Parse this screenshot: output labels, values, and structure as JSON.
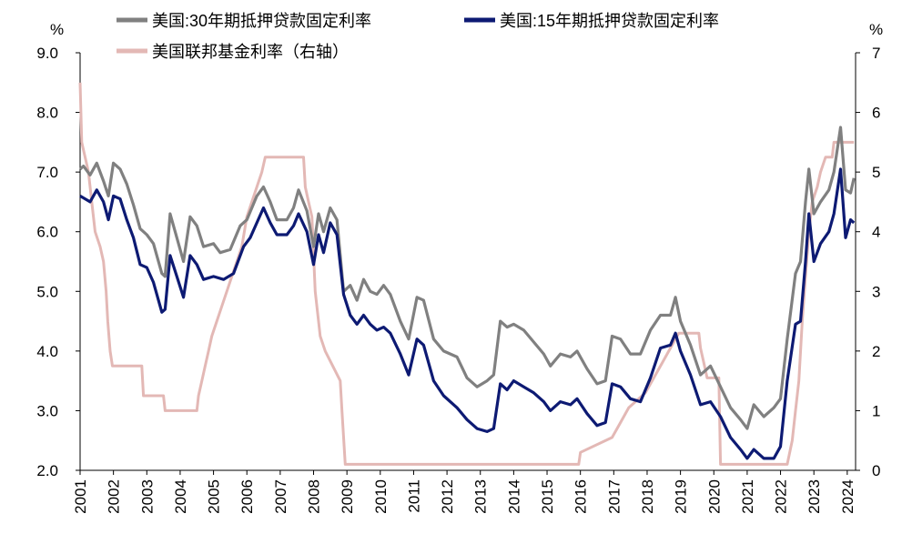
{
  "chart_data": {
    "type": "line",
    "title": "",
    "left_axis_unit": "%",
    "right_axis_unit": "%",
    "ylim_left": [
      2.0,
      9.0
    ],
    "ylim_right": [
      0,
      7
    ],
    "yticks_left": [
      "9.0",
      "8.0",
      "7.0",
      "6.0",
      "5.0",
      "4.0",
      "3.0",
      "2.0"
    ],
    "yticks_right": [
      "7",
      "6",
      "5",
      "4",
      "3",
      "2",
      "1",
      "0"
    ],
    "xlim": [
      2001,
      2024.25
    ],
    "xticks": [
      "2001",
      "2002",
      "2003",
      "2004",
      "2005",
      "2006",
      "2007",
      "2008",
      "2009",
      "2010",
      "2011",
      "2012",
      "2013",
      "2014",
      "2015",
      "2016",
      "2017",
      "2018",
      "2019",
      "2020",
      "2021",
      "2022",
      "2023",
      "2024"
    ],
    "series": [
      {
        "name": "美国:30年期抵押贷款固定利率",
        "color": "#808080",
        "axis": "left",
        "points": [
          [
            2001.0,
            7.05
          ],
          [
            2001.1,
            7.1
          ],
          [
            2001.3,
            6.95
          ],
          [
            2001.5,
            7.15
          ],
          [
            2001.7,
            6.85
          ],
          [
            2001.85,
            6.6
          ],
          [
            2002.0,
            7.15
          ],
          [
            2002.2,
            7.05
          ],
          [
            2002.4,
            6.8
          ],
          [
            2002.6,
            6.45
          ],
          [
            2002.8,
            6.05
          ],
          [
            2003.0,
            5.95
          ],
          [
            2003.2,
            5.8
          ],
          [
            2003.45,
            5.3
          ],
          [
            2003.55,
            5.25
          ],
          [
            2003.7,
            6.3
          ],
          [
            2003.9,
            5.9
          ],
          [
            2004.1,
            5.5
          ],
          [
            2004.3,
            6.25
          ],
          [
            2004.5,
            6.1
          ],
          [
            2004.7,
            5.75
          ],
          [
            2005.0,
            5.8
          ],
          [
            2005.2,
            5.65
          ],
          [
            2005.5,
            5.7
          ],
          [
            2005.8,
            6.1
          ],
          [
            2006.0,
            6.2
          ],
          [
            2006.3,
            6.6
          ],
          [
            2006.5,
            6.75
          ],
          [
            2006.7,
            6.5
          ],
          [
            2006.9,
            6.2
          ],
          [
            2007.2,
            6.2
          ],
          [
            2007.4,
            6.4
          ],
          [
            2007.55,
            6.7
          ],
          [
            2007.8,
            6.35
          ],
          [
            2008.0,
            5.75
          ],
          [
            2008.15,
            6.3
          ],
          [
            2008.3,
            6.0
          ],
          [
            2008.5,
            6.4
          ],
          [
            2008.7,
            6.2
          ],
          [
            2008.9,
            5.0
          ],
          [
            2009.1,
            5.1
          ],
          [
            2009.3,
            4.85
          ],
          [
            2009.5,
            5.2
          ],
          [
            2009.7,
            5.0
          ],
          [
            2009.9,
            4.95
          ],
          [
            2010.1,
            5.1
          ],
          [
            2010.3,
            4.95
          ],
          [
            2010.6,
            4.5
          ],
          [
            2010.85,
            4.2
          ],
          [
            2011.1,
            4.9
          ],
          [
            2011.3,
            4.85
          ],
          [
            2011.6,
            4.2
          ],
          [
            2011.9,
            4.0
          ],
          [
            2012.3,
            3.9
          ],
          [
            2012.6,
            3.55
          ],
          [
            2012.9,
            3.4
          ],
          [
            2013.2,
            3.5
          ],
          [
            2013.4,
            3.6
          ],
          [
            2013.6,
            4.5
          ],
          [
            2013.8,
            4.4
          ],
          [
            2014.0,
            4.45
          ],
          [
            2014.3,
            4.35
          ],
          [
            2014.6,
            4.15
          ],
          [
            2014.9,
            3.95
          ],
          [
            2015.1,
            3.75
          ],
          [
            2015.4,
            3.95
          ],
          [
            2015.7,
            3.9
          ],
          [
            2015.9,
            4.0
          ],
          [
            2016.2,
            3.7
          ],
          [
            2016.5,
            3.45
          ],
          [
            2016.75,
            3.5
          ],
          [
            2016.95,
            4.25
          ],
          [
            2017.2,
            4.2
          ],
          [
            2017.5,
            3.95
          ],
          [
            2017.8,
            3.95
          ],
          [
            2018.1,
            4.35
          ],
          [
            2018.4,
            4.6
          ],
          [
            2018.7,
            4.6
          ],
          [
            2018.85,
            4.9
          ],
          [
            2019.0,
            4.5
          ],
          [
            2019.3,
            4.1
          ],
          [
            2019.6,
            3.6
          ],
          [
            2019.9,
            3.75
          ],
          [
            2020.2,
            3.4
          ],
          [
            2020.5,
            3.05
          ],
          [
            2020.8,
            2.85
          ],
          [
            2021.0,
            2.7
          ],
          [
            2021.2,
            3.1
          ],
          [
            2021.5,
            2.9
          ],
          [
            2021.8,
            3.05
          ],
          [
            2022.0,
            3.2
          ],
          [
            2022.2,
            4.2
          ],
          [
            2022.45,
            5.3
          ],
          [
            2022.6,
            5.5
          ],
          [
            2022.75,
            6.5
          ],
          [
            2022.85,
            7.05
          ],
          [
            2023.0,
            6.3
          ],
          [
            2023.2,
            6.5
          ],
          [
            2023.45,
            6.7
          ],
          [
            2023.6,
            7.0
          ],
          [
            2023.8,
            7.75
          ],
          [
            2023.95,
            6.7
          ],
          [
            2024.1,
            6.65
          ],
          [
            2024.2,
            6.9
          ]
        ]
      },
      {
        "name": "美国:15年期抵押贷款固定利率",
        "color": "#0d1a73",
        "axis": "left",
        "points": [
          [
            2001.0,
            6.6
          ],
          [
            2001.15,
            6.55
          ],
          [
            2001.3,
            6.5
          ],
          [
            2001.5,
            6.7
          ],
          [
            2001.7,
            6.5
          ],
          [
            2001.85,
            6.2
          ],
          [
            2002.0,
            6.6
          ],
          [
            2002.2,
            6.55
          ],
          [
            2002.4,
            6.2
          ],
          [
            2002.6,
            5.9
          ],
          [
            2002.8,
            5.45
          ],
          [
            2003.0,
            5.4
          ],
          [
            2003.2,
            5.15
          ],
          [
            2003.45,
            4.65
          ],
          [
            2003.55,
            4.7
          ],
          [
            2003.7,
            5.6
          ],
          [
            2003.9,
            5.25
          ],
          [
            2004.1,
            4.9
          ],
          [
            2004.3,
            5.6
          ],
          [
            2004.5,
            5.45
          ],
          [
            2004.7,
            5.2
          ],
          [
            2005.0,
            5.25
          ],
          [
            2005.3,
            5.2
          ],
          [
            2005.6,
            5.3
          ],
          [
            2005.9,
            5.75
          ],
          [
            2006.1,
            5.9
          ],
          [
            2006.3,
            6.15
          ],
          [
            2006.5,
            6.4
          ],
          [
            2006.7,
            6.15
          ],
          [
            2006.9,
            5.95
          ],
          [
            2007.2,
            5.95
          ],
          [
            2007.4,
            6.1
          ],
          [
            2007.55,
            6.3
          ],
          [
            2007.8,
            6.0
          ],
          [
            2008.0,
            5.45
          ],
          [
            2008.15,
            5.95
          ],
          [
            2008.3,
            5.65
          ],
          [
            2008.5,
            6.15
          ],
          [
            2008.7,
            5.95
          ],
          [
            2008.9,
            4.95
          ],
          [
            2009.1,
            4.6
          ],
          [
            2009.3,
            4.45
          ],
          [
            2009.5,
            4.6
          ],
          [
            2009.7,
            4.45
          ],
          [
            2009.9,
            4.35
          ],
          [
            2010.1,
            4.4
          ],
          [
            2010.3,
            4.3
          ],
          [
            2010.6,
            3.95
          ],
          [
            2010.85,
            3.6
          ],
          [
            2011.1,
            4.2
          ],
          [
            2011.3,
            4.1
          ],
          [
            2011.6,
            3.5
          ],
          [
            2011.9,
            3.25
          ],
          [
            2012.3,
            3.05
          ],
          [
            2012.6,
            2.85
          ],
          [
            2012.9,
            2.7
          ],
          [
            2013.2,
            2.65
          ],
          [
            2013.4,
            2.7
          ],
          [
            2013.6,
            3.45
          ],
          [
            2013.8,
            3.35
          ],
          [
            2014.0,
            3.5
          ],
          [
            2014.3,
            3.4
          ],
          [
            2014.6,
            3.3
          ],
          [
            2014.9,
            3.15
          ],
          [
            2015.1,
            3.0
          ],
          [
            2015.4,
            3.15
          ],
          [
            2015.7,
            3.1
          ],
          [
            2015.9,
            3.2
          ],
          [
            2016.2,
            2.95
          ],
          [
            2016.5,
            2.75
          ],
          [
            2016.75,
            2.8
          ],
          [
            2016.95,
            3.45
          ],
          [
            2017.2,
            3.4
          ],
          [
            2017.5,
            3.2
          ],
          [
            2017.8,
            3.15
          ],
          [
            2018.1,
            3.55
          ],
          [
            2018.4,
            4.05
          ],
          [
            2018.7,
            4.1
          ],
          [
            2018.85,
            4.3
          ],
          [
            2019.0,
            4.0
          ],
          [
            2019.3,
            3.6
          ],
          [
            2019.6,
            3.1
          ],
          [
            2019.9,
            3.15
          ],
          [
            2020.2,
            2.9
          ],
          [
            2020.5,
            2.55
          ],
          [
            2020.8,
            2.35
          ],
          [
            2021.0,
            2.2
          ],
          [
            2021.2,
            2.35
          ],
          [
            2021.5,
            2.2
          ],
          [
            2021.8,
            2.2
          ],
          [
            2022.0,
            2.4
          ],
          [
            2022.2,
            3.5
          ],
          [
            2022.45,
            4.45
          ],
          [
            2022.6,
            4.5
          ],
          [
            2022.75,
            5.5
          ],
          [
            2022.85,
            6.3
          ],
          [
            2023.0,
            5.5
          ],
          [
            2023.2,
            5.8
          ],
          [
            2023.45,
            6.0
          ],
          [
            2023.6,
            6.3
          ],
          [
            2023.8,
            7.05
          ],
          [
            2023.95,
            5.9
          ],
          [
            2024.1,
            6.2
          ],
          [
            2024.2,
            6.15
          ]
        ]
      },
      {
        "name": "美国联邦基金利率（右轴）",
        "color": "#e3b8b5",
        "axis": "right",
        "points": [
          [
            2001.0,
            6.5
          ],
          [
            2001.05,
            5.5
          ],
          [
            2001.25,
            5.0
          ],
          [
            2001.35,
            4.5
          ],
          [
            2001.45,
            4.0
          ],
          [
            2001.6,
            3.75
          ],
          [
            2001.7,
            3.5
          ],
          [
            2001.78,
            3.0
          ],
          [
            2001.83,
            2.5
          ],
          [
            2001.9,
            2.0
          ],
          [
            2001.97,
            1.75
          ],
          [
            2002.85,
            1.75
          ],
          [
            2002.9,
            1.25
          ],
          [
            2003.5,
            1.25
          ],
          [
            2003.55,
            1.0
          ],
          [
            2004.5,
            1.0
          ],
          [
            2004.55,
            1.25
          ],
          [
            2004.65,
            1.5
          ],
          [
            2004.75,
            1.75
          ],
          [
            2004.85,
            2.0
          ],
          [
            2004.95,
            2.25
          ],
          [
            2005.1,
            2.5
          ],
          [
            2005.25,
            2.75
          ],
          [
            2005.4,
            3.0
          ],
          [
            2005.55,
            3.25
          ],
          [
            2005.7,
            3.5
          ],
          [
            2005.85,
            3.75
          ],
          [
            2006.0,
            4.25
          ],
          [
            2006.15,
            4.5
          ],
          [
            2006.3,
            4.75
          ],
          [
            2006.45,
            5.0
          ],
          [
            2006.55,
            5.25
          ],
          [
            2007.7,
            5.25
          ],
          [
            2007.75,
            4.75
          ],
          [
            2007.85,
            4.5
          ],
          [
            2007.95,
            4.25
          ],
          [
            2008.05,
            3.0
          ],
          [
            2008.2,
            2.25
          ],
          [
            2008.35,
            2.0
          ],
          [
            2008.8,
            1.5
          ],
          [
            2008.85,
            1.0
          ],
          [
            2008.95,
            0.1
          ],
          [
            2015.95,
            0.1
          ],
          [
            2016.0,
            0.3
          ],
          [
            2016.95,
            0.55
          ],
          [
            2017.2,
            0.8
          ],
          [
            2017.45,
            1.05
          ],
          [
            2017.95,
            1.3
          ],
          [
            2018.2,
            1.55
          ],
          [
            2018.45,
            1.8
          ],
          [
            2018.7,
            2.05
          ],
          [
            2018.95,
            2.3
          ],
          [
            2019.55,
            2.3
          ],
          [
            2019.6,
            2.05
          ],
          [
            2019.7,
            1.8
          ],
          [
            2019.8,
            1.55
          ],
          [
            2020.15,
            1.55
          ],
          [
            2020.2,
            0.1
          ],
          [
            2022.2,
            0.1
          ],
          [
            2022.35,
            0.5
          ],
          [
            2022.45,
            1.0
          ],
          [
            2022.55,
            1.5
          ],
          [
            2022.65,
            2.5
          ],
          [
            2022.75,
            3.25
          ],
          [
            2022.85,
            4.0
          ],
          [
            2022.95,
            4.5
          ],
          [
            2023.1,
            4.75
          ],
          [
            2023.2,
            5.0
          ],
          [
            2023.35,
            5.25
          ],
          [
            2023.55,
            5.25
          ],
          [
            2023.6,
            5.5
          ],
          [
            2024.2,
            5.5
          ]
        ]
      }
    ]
  }
}
